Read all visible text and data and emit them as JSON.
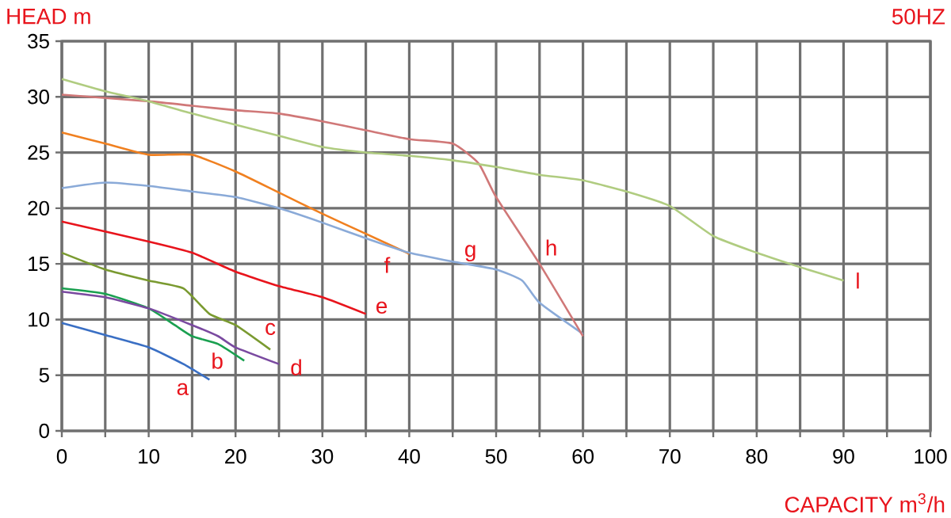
{
  "chart_data": {
    "type": "line",
    "xlabel": "CAPACITY m$^{3}$/h",
    "ylabel": "HEAD m",
    "annotations": [
      "50HZ"
    ],
    "xlim": [
      0,
      100
    ],
    "ylim": [
      0,
      35
    ],
    "xticks": [
      0,
      {
        "value": 5,
        "label": null
      },
      10,
      {
        "value": 15,
        "label": null
      },
      20,
      {
        "value": 25,
        "label": null
      },
      30,
      {
        "value": 35,
        "label": null
      },
      40,
      {
        "value": 45,
        "label": null
      },
      50,
      {
        "value": 55,
        "label": null
      },
      60,
      {
        "value": 65,
        "label": null
      },
      70,
      {
        "value": 75,
        "label": null
      },
      80,
      {
        "value": 85,
        "label": null
      },
      90,
      {
        "value": 95,
        "label": null
      },
      100
    ],
    "yticks": [
      0,
      5,
      10,
      15,
      20,
      25,
      30,
      35
    ],
    "grid": true,
    "legend": false,
    "marker": "none",
    "line_style": "solid",
    "series": [
      {
        "name": "a",
        "color": "#3a6fc4",
        "x": [
          0,
          5,
          10,
          14,
          17
        ],
        "values": [
          9.7,
          8.6,
          7.5,
          6,
          4.6
        ]
      },
      {
        "name": "b",
        "color": "#1aa050",
        "x": [
          0,
          5,
          10,
          13,
          15,
          18,
          21
        ],
        "values": [
          12.8,
          12.3,
          11,
          9.5,
          8.5,
          7.8,
          6.3
        ]
      },
      {
        "name": "c",
        "color": "#7a9a30",
        "x": [
          0,
          5,
          10,
          14,
          17,
          20,
          24
        ],
        "values": [
          16,
          14.5,
          13.5,
          12.8,
          10.5,
          9.5,
          7.3
        ]
      },
      {
        "name": "d",
        "color": "#7a4aa0",
        "x": [
          0,
          5,
          10,
          15,
          18,
          20,
          25
        ],
        "values": [
          12.5,
          12,
          11,
          9.5,
          8.5,
          7.5,
          6
        ]
      },
      {
        "name": "e",
        "color": "#e8141c",
        "x": [
          0,
          10,
          15,
          20,
          25,
          30,
          35
        ],
        "values": [
          18.8,
          17,
          16,
          14.3,
          13,
          12,
          10.5
        ]
      },
      {
        "name": "f",
        "color": "#f08020",
        "x": [
          0,
          5,
          10,
          15,
          20,
          25,
          30,
          35,
          40
        ],
        "values": [
          26.8,
          25.8,
          24.8,
          24.8,
          23.3,
          21.4,
          19.5,
          17.7,
          15.9
        ]
      },
      {
        "name": "g",
        "color": "#8aaad8",
        "x": [
          0,
          5,
          10,
          15,
          20,
          25,
          30,
          35,
          40,
          45,
          50,
          53,
          55,
          60
        ],
        "values": [
          21.8,
          22.3,
          22,
          21.5,
          21,
          20,
          18.7,
          17.3,
          16,
          15.2,
          14.5,
          13.5,
          11.5,
          8.7
        ]
      },
      {
        "name": "h",
        "color": "#d07878",
        "x": [
          0,
          10,
          15,
          20,
          25,
          30,
          35,
          40,
          45,
          48,
          50,
          55,
          60
        ],
        "values": [
          30.2,
          29.6,
          29.2,
          28.8,
          28.5,
          27.8,
          27,
          26.2,
          25.8,
          24,
          21,
          15,
          8.5
        ]
      },
      {
        "name": "l",
        "color": "#b0cc80",
        "x": [
          0,
          5,
          10,
          15,
          20,
          25,
          30,
          35,
          40,
          45,
          50,
          55,
          60,
          65,
          70,
          75,
          80,
          85,
          90
        ],
        "values": [
          31.6,
          30.5,
          29.6,
          28.5,
          27.5,
          26.5,
          25.5,
          25,
          24.7,
          24.3,
          23.7,
          23,
          22.5,
          21.5,
          20.2,
          17.5,
          16,
          14.7,
          13.5
        ]
      }
    ]
  }
}
